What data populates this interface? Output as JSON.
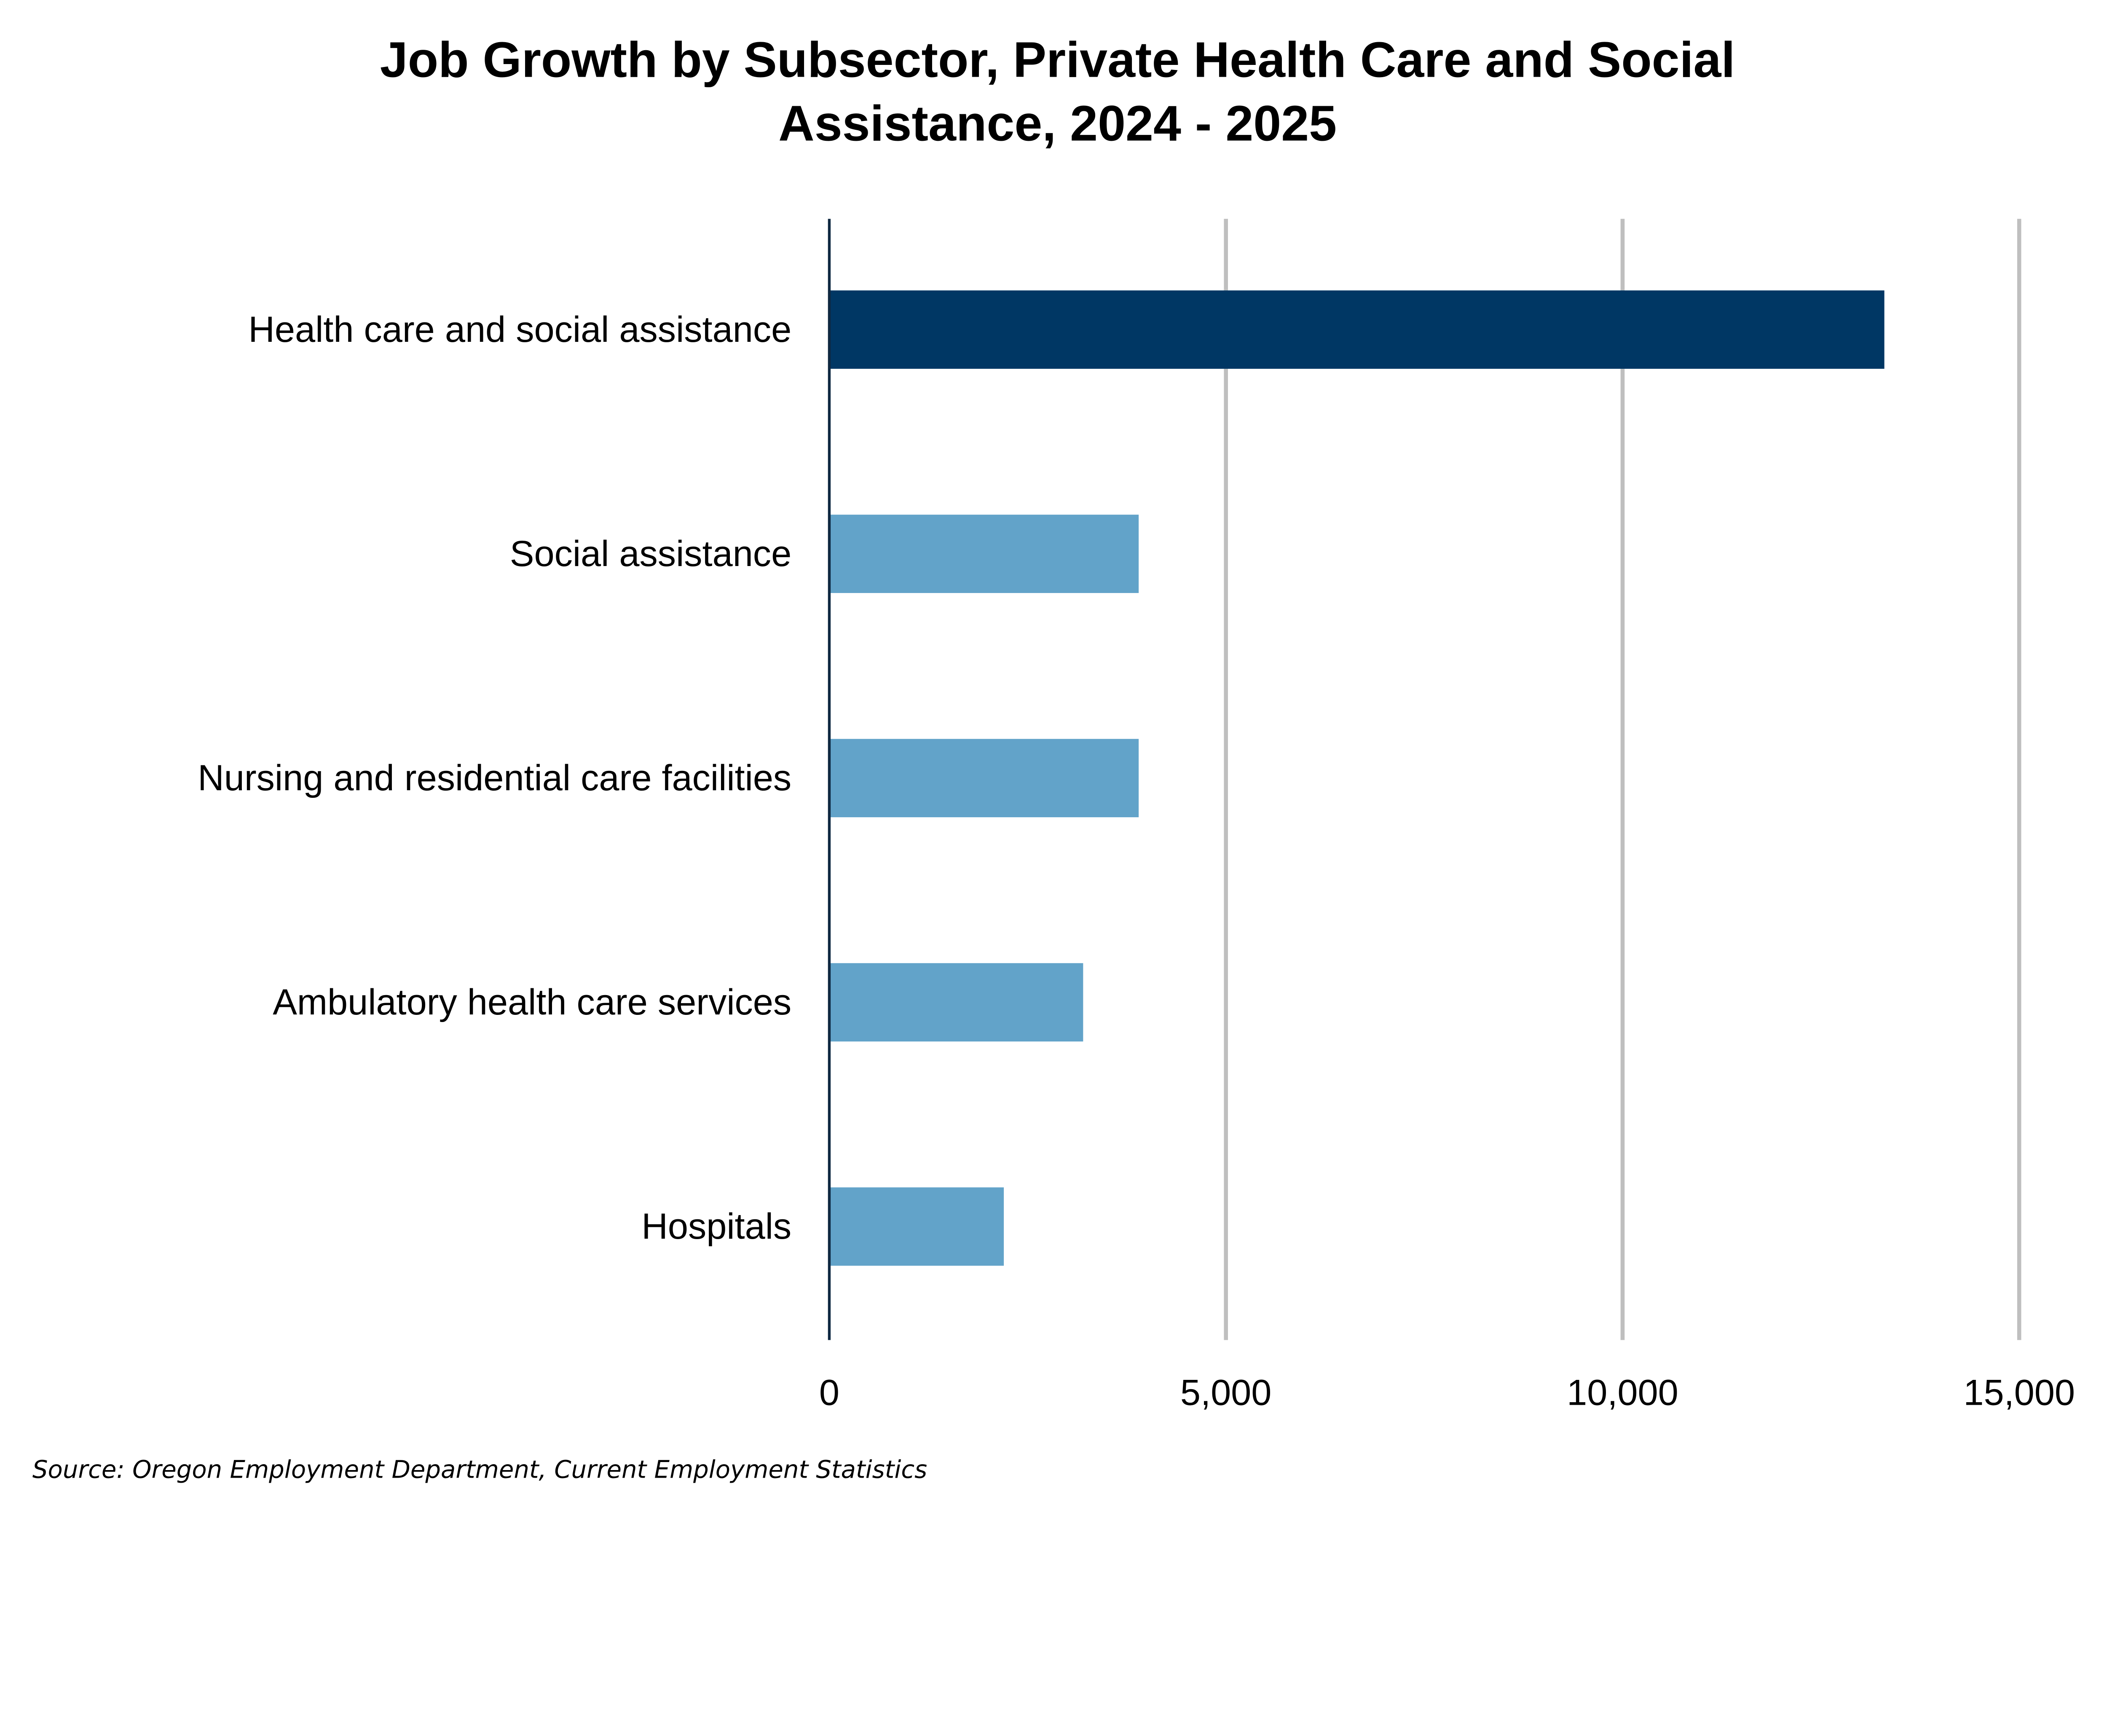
{
  "chart_data": {
    "type": "bar",
    "orientation": "horizontal",
    "title": "Job Growth by Subsector, Private Health Care and Social Assistance, 2024 - 2025",
    "title_lines": [
      "Job Growth by Subsector, Private Health Care and Social",
      "Assistance, 2024 - 2025"
    ],
    "categories": [
      "Health care and social assistance",
      "Social assistance",
      "Nursing and residential care facilities",
      "Ambulatory health care services",
      "Hospitals"
    ],
    "values": [
      13300,
      3900,
      3900,
      3200,
      2200
    ],
    "bar_colors": [
      "#003764",
      "#62a3c9",
      "#62a3c9",
      "#62a3c9",
      "#62a3c9"
    ],
    "xlim": [
      0,
      15000
    ],
    "xticks": [
      0,
      5000,
      10000,
      15000
    ],
    "xtick_labels": [
      "0",
      "5,000",
      "10,000",
      "15,000"
    ],
    "xlabel": "",
    "ylabel": "",
    "grid": "vertical",
    "gridline_color": "#bfbfbf",
    "source": "Source: Oregon Employment Department, Current Employment Statistics"
  }
}
